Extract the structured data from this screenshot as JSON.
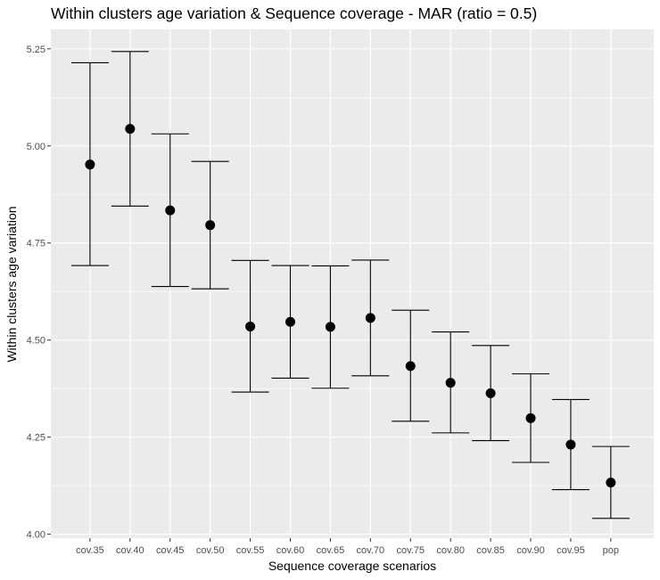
{
  "chart_data": {
    "type": "errorbar",
    "title": "Within clusters age variation & Sequence coverage - MAR (ratio = 0.5)",
    "xlabel": "Sequence coverage scenarios",
    "ylabel": "Within clusters age variation",
    "categories": [
      "cov.35",
      "cov.40",
      "cov.45",
      "cov.50",
      "cov.55",
      "cov.60",
      "cov.65",
      "cov.70",
      "cov.75",
      "cov.80",
      "cov.85",
      "cov.90",
      "cov.95",
      "pop"
    ],
    "y_ticks": [
      4.0,
      4.25,
      4.5,
      4.75,
      5.0,
      5.25
    ],
    "y_tick_labels": [
      "4.00",
      "4.25",
      "4.50",
      "4.75",
      "5.00",
      "5.25"
    ],
    "ylim": [
      3.99,
      5.3
    ],
    "series": [
      {
        "mean": [
          4.952,
          5.044,
          4.834,
          4.796,
          4.535,
          4.547,
          4.534,
          4.557,
          4.433,
          4.39,
          4.363,
          4.299,
          4.231,
          4.133
        ],
        "lower": [
          4.692,
          4.845,
          4.638,
          4.632,
          4.366,
          4.402,
          4.376,
          4.408,
          4.291,
          4.261,
          4.241,
          4.185,
          4.115,
          4.041
        ],
        "upper": [
          5.214,
          5.243,
          5.031,
          4.96,
          4.705,
          4.692,
          4.691,
          4.706,
          4.577,
          4.521,
          4.486,
          4.413,
          4.347,
          4.226
        ]
      }
    ],
    "grid": true,
    "legend": "none",
    "colors": {
      "panel_background": "#ebebeb",
      "grid_major": "#ffffff",
      "marks": "#000000",
      "tick_text": "#4d4d4d"
    }
  }
}
